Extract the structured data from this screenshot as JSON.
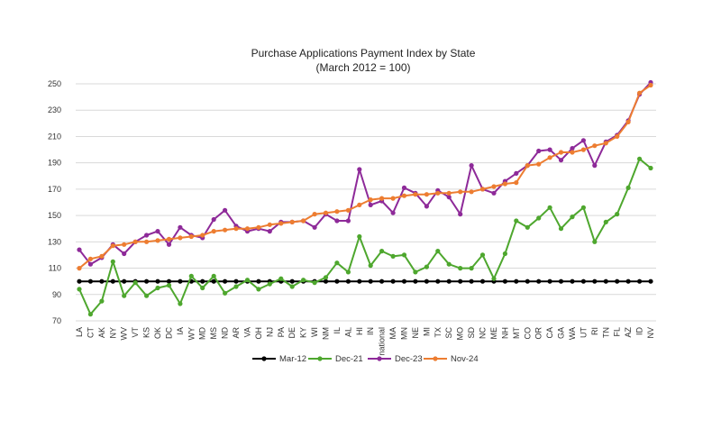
{
  "chart_data": {
    "type": "line",
    "title": "Purchase Applications Payment Index by State",
    "subtitle": "(March 2012 = 100)",
    "xlabel": "",
    "ylabel": "",
    "ylim": [
      70,
      250
    ],
    "yticks": [
      70,
      90,
      110,
      130,
      150,
      170,
      190,
      210,
      230,
      250
    ],
    "grid": "horizontal",
    "legend_position": "bottom",
    "categories": [
      "LA",
      "CT",
      "AK",
      "NY",
      "WV",
      "VT",
      "KS",
      "OK",
      "DC",
      "IA",
      "WY",
      "MD",
      "MS",
      "ND",
      "AR",
      "VA",
      "OH",
      "NJ",
      "PA",
      "DE",
      "KY",
      "WI",
      "NM",
      "IL",
      "AL",
      "HI",
      "IN",
      "national",
      "MA",
      "MN",
      "NE",
      "MI",
      "TX",
      "SC",
      "MO",
      "SD",
      "NC",
      "ME",
      "NH",
      "MT",
      "CO",
      "OR",
      "CA",
      "GA",
      "WA",
      "UT",
      "RI",
      "TN",
      "FL",
      "AZ",
      "ID",
      "NV"
    ],
    "series": [
      {
        "name": "Mar-12",
        "color": "#000000",
        "values": [
          100,
          100,
          100,
          100,
          100,
          100,
          100,
          100,
          100,
          100,
          100,
          100,
          100,
          100,
          100,
          100,
          100,
          100,
          100,
          100,
          100,
          100,
          100,
          100,
          100,
          100,
          100,
          100,
          100,
          100,
          100,
          100,
          100,
          100,
          100,
          100,
          100,
          100,
          100,
          100,
          100,
          100,
          100,
          100,
          100,
          100,
          100,
          100,
          100,
          100,
          100,
          100
        ]
      },
      {
        "name": "Dec-21",
        "color": "#4ea72e",
        "values": [
          94,
          75,
          85,
          115,
          89,
          99,
          89,
          95,
          97,
          83,
          104,
          95,
          104,
          91,
          96,
          101,
          94,
          98,
          102,
          96,
          101,
          99,
          103,
          114,
          107,
          134,
          112,
          123,
          119,
          120,
          107,
          111,
          123,
          113,
          110,
          110,
          120,
          102,
          121,
          146,
          141,
          148,
          156,
          140,
          149,
          156,
          130,
          145,
          151,
          171,
          193,
          186
        ]
      },
      {
        "name": "Dec-23",
        "color": "#8e2a99",
        "values": [
          124,
          113,
          118,
          128,
          121,
          130,
          135,
          138,
          128,
          141,
          135,
          133,
          147,
          154,
          142,
          138,
          140,
          138,
          145,
          145,
          146,
          141,
          151,
          146,
          146,
          185,
          158,
          161,
          152,
          171,
          167,
          157,
          169,
          164,
          151,
          188,
          170,
          167,
          176,
          182,
          188,
          199,
          200,
          192,
          201,
          207,
          188,
          206,
          211,
          222,
          242,
          251
        ]
      },
      {
        "name": "Nov-24",
        "color": "#ed7d31",
        "values": [
          110,
          117,
          119,
          127,
          128,
          130,
          130,
          131,
          132,
          133,
          134,
          135,
          138,
          139,
          140,
          140,
          141,
          143,
          144,
          145,
          146,
          151,
          152,
          153,
          154,
          158,
          162,
          163,
          163,
          165,
          166,
          166,
          167,
          167,
          168,
          168,
          170,
          172,
          174,
          175,
          188,
          189,
          194,
          198,
          198,
          200,
          203,
          205,
          210,
          221,
          243,
          249
        ]
      }
    ]
  }
}
